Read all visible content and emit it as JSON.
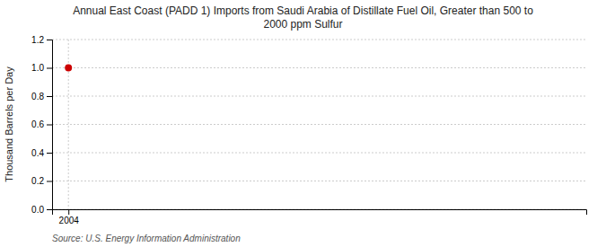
{
  "chart_data": {
    "type": "scatter",
    "title": "Annual East Coast (PADD 1) Imports from Saudi Arabia of Distillate Fuel Oil, Greater than 500 to\n2000 ppm Sulfur",
    "ylabel": "Thousand Barrels per Day",
    "annotations": [
      "Source: U.S. Energy Information Administration"
    ],
    "x": [
      2004
    ],
    "values": [
      1.0
    ],
    "color": "#cc0000",
    "marker": "circle",
    "xlim": [
      2003.4,
      2023
    ],
    "xticks": [
      2004
    ],
    "ylim": [
      0.0,
      1.2
    ],
    "yticks": [
      {
        "value": 0.0,
        "label": "0.0"
      },
      0.2,
      0.4,
      0.6,
      0.8,
      {
        "value": 1.0,
        "label": "1.0"
      },
      1.2
    ],
    "grid": true
  }
}
